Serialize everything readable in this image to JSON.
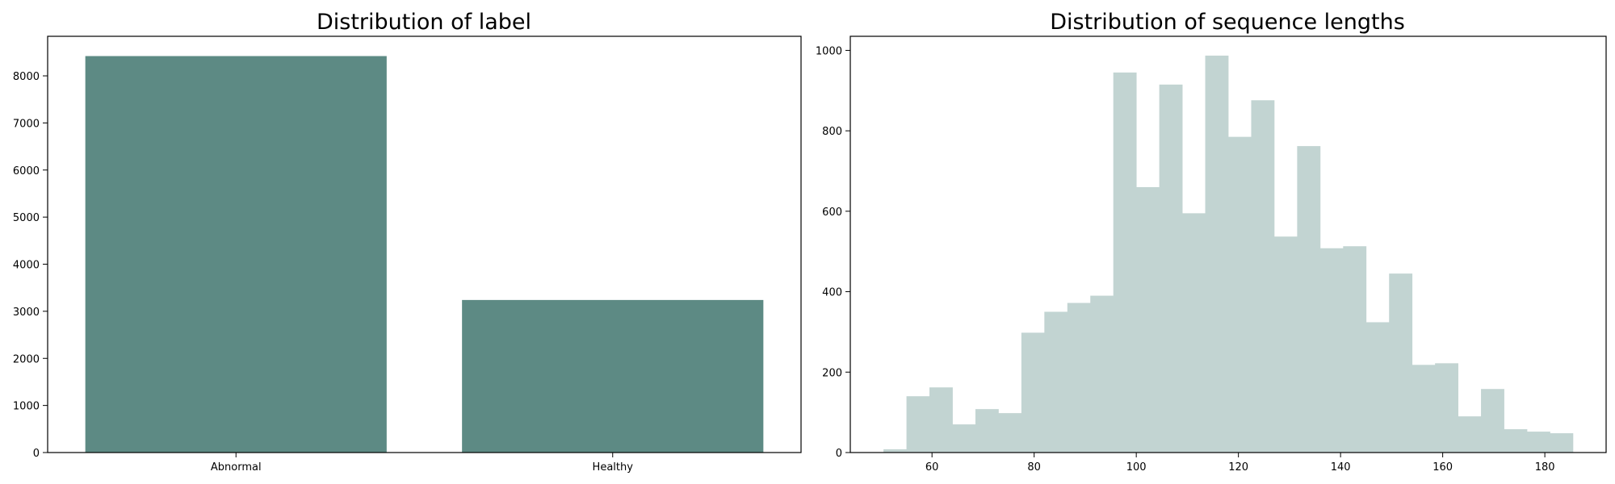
{
  "chart_data": [
    {
      "type": "bar",
      "title": "Distribution of label",
      "xlabel": "",
      "ylabel": "",
      "categories": [
        "Abnormal",
        "Healthy"
      ],
      "values": [
        8420,
        3240
      ],
      "ylim": [
        0,
        8840
      ],
      "yticks": [
        0,
        1000,
        2000,
        3000,
        4000,
        5000,
        6000,
        7000,
        8000
      ],
      "bar_color": "#5d8a84",
      "grid": false,
      "legend": "none"
    },
    {
      "type": "bar",
      "subtype": "histogram",
      "title": "Distribution of sequence lengths",
      "xlabel": "",
      "ylabel": "",
      "bin_edges": [
        50.5,
        55.0,
        59.5,
        64.0,
        68.5,
        73.0,
        77.5,
        82.0,
        86.5,
        91.0,
        95.5,
        100.0,
        104.5,
        109.0,
        113.5,
        118.0,
        122.5,
        127.0,
        131.5,
        136.0,
        140.5,
        145.0,
        149.5,
        154.0,
        158.5,
        163.0,
        167.5,
        172.0,
        176.5,
        181.0,
        185.5
      ],
      "values": [
        8,
        140,
        162,
        70,
        108,
        98,
        298,
        350,
        372,
        390,
        945,
        660,
        915,
        595,
        987,
        785,
        876,
        537,
        762,
        508,
        513,
        324,
        445,
        218,
        222,
        90,
        158,
        58,
        52,
        48
      ],
      "xlim": [
        44,
        192
      ],
      "ylim": [
        0,
        1035
      ],
      "xticks": [
        60,
        80,
        100,
        120,
        140,
        160,
        180
      ],
      "yticks": [
        0,
        200,
        400,
        600,
        800,
        1000
      ],
      "bar_color": "#c2d4d2",
      "grid": false,
      "legend": "none"
    }
  ]
}
